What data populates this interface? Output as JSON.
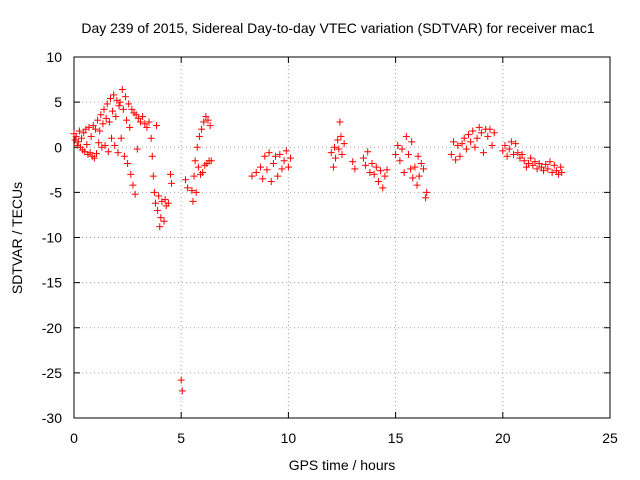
{
  "chart_data": {
    "type": "scatter",
    "title": "Day 239 of 2015, Sidereal Day-to-day VTEC variation (SDTVAR) for receiver mac1",
    "xlabel": "GPS time / hours",
    "ylabel": "SDTVAR / TECUs",
    "xlim": [
      0,
      25
    ],
    "ylim": [
      -30,
      10
    ],
    "xticks": [
      0,
      5,
      10,
      15,
      20,
      25
    ],
    "yticks": [
      10,
      5,
      0,
      -5,
      -10,
      -15,
      -20,
      -25,
      -30
    ],
    "grid": true,
    "marker": "plus",
    "color": "#ff0000",
    "series": [
      {
        "name": "SDTVAR",
        "points": [
          [
            0.0,
            1.5
          ],
          [
            0.05,
            0.8
          ],
          [
            0.1,
            1.2
          ],
          [
            0.15,
            0.2
          ],
          [
            0.2,
            0.6
          ],
          [
            0.25,
            1.8
          ],
          [
            0.3,
            0.0
          ],
          [
            0.35,
            1.0
          ],
          [
            0.4,
            -0.3
          ],
          [
            0.45,
            1.6
          ],
          [
            0.5,
            -0.5
          ],
          [
            0.55,
            2.0
          ],
          [
            0.6,
            0.3
          ],
          [
            0.65,
            -0.8
          ],
          [
            0.7,
            2.2
          ],
          [
            0.75,
            -0.6
          ],
          [
            0.8,
            1.2
          ],
          [
            0.85,
            -1.0
          ],
          [
            0.9,
            2.4
          ],
          [
            0.95,
            -1.2
          ],
          [
            1.0,
            2.0
          ],
          [
            1.05,
            -0.7
          ],
          [
            1.1,
            3.0
          ],
          [
            1.15,
            0.5
          ],
          [
            1.2,
            1.8
          ],
          [
            1.25,
            3.6
          ],
          [
            1.3,
            0.0
          ],
          [
            1.35,
            2.6
          ],
          [
            1.4,
            4.2
          ],
          [
            1.45,
            0.2
          ],
          [
            1.5,
            3.2
          ],
          [
            1.55,
            4.8
          ],
          [
            1.6,
            -0.5
          ],
          [
            1.65,
            2.8
          ],
          [
            1.7,
            5.4
          ],
          [
            1.75,
            1.0
          ],
          [
            1.8,
            4.0
          ],
          [
            1.85,
            5.8
          ],
          [
            1.9,
            0.2
          ],
          [
            1.95,
            3.4
          ],
          [
            2.0,
            5.2
          ],
          [
            2.05,
            -0.6
          ],
          [
            2.1,
            4.6
          ],
          [
            2.15,
            5.0
          ],
          [
            2.2,
            1.0
          ],
          [
            2.25,
            6.4
          ],
          [
            2.3,
            4.2
          ],
          [
            2.35,
            -1.0
          ],
          [
            2.4,
            5.6
          ],
          [
            2.45,
            3.0
          ],
          [
            2.5,
            -1.8
          ],
          [
            2.55,
            4.8
          ],
          [
            2.6,
            2.2
          ],
          [
            2.65,
            -3.0
          ],
          [
            2.7,
            4.2
          ],
          [
            2.75,
            -4.2
          ],
          [
            2.8,
            3.8
          ],
          [
            2.85,
            -5.2
          ],
          [
            2.9,
            3.6
          ],
          [
            2.95,
            -0.2
          ],
          [
            3.0,
            3.2
          ],
          [
            3.1,
            2.8
          ],
          [
            3.2,
            3.4
          ],
          [
            3.3,
            2.6
          ],
          [
            3.4,
            2.2
          ],
          [
            3.5,
            2.8
          ],
          [
            3.6,
            1.0
          ],
          [
            3.65,
            -1.0
          ],
          [
            3.7,
            -3.2
          ],
          [
            3.75,
            -5.0
          ],
          [
            3.8,
            -6.2
          ],
          [
            3.85,
            2.4
          ],
          [
            3.9,
            -7.0
          ],
          [
            3.95,
            -5.4
          ],
          [
            4.0,
            -8.8
          ],
          [
            4.05,
            -7.8
          ],
          [
            4.1,
            -6.0
          ],
          [
            4.2,
            -8.2
          ],
          [
            4.25,
            -5.8
          ],
          [
            4.3,
            -6.5
          ],
          [
            4.4,
            -6.2
          ],
          [
            4.5,
            -3.0
          ],
          [
            4.55,
            -4.0
          ],
          [
            5.0,
            -25.8
          ],
          [
            5.05,
            -27.0
          ],
          [
            5.2,
            -3.6
          ],
          [
            5.3,
            -4.5
          ],
          [
            5.5,
            -4.8
          ],
          [
            5.55,
            -6.0
          ],
          [
            5.6,
            -3.2
          ],
          [
            5.65,
            -1.5
          ],
          [
            5.7,
            -5.0
          ],
          [
            5.75,
            0.0
          ],
          [
            5.8,
            -2.2
          ],
          [
            5.85,
            1.2
          ],
          [
            5.9,
            -3.0
          ],
          [
            5.95,
            2.0
          ],
          [
            6.0,
            -2.8
          ],
          [
            6.05,
            2.8
          ],
          [
            6.1,
            -2.0
          ],
          [
            6.15,
            3.4
          ],
          [
            6.2,
            -1.8
          ],
          [
            6.25,
            3.0
          ],
          [
            6.3,
            -1.5
          ],
          [
            6.35,
            2.4
          ],
          [
            6.4,
            -1.5
          ],
          [
            8.3,
            -3.2
          ],
          [
            8.5,
            -2.8
          ],
          [
            8.7,
            -2.2
          ],
          [
            8.8,
            -3.5
          ],
          [
            8.9,
            -1.0
          ],
          [
            9.0,
            -2.5
          ],
          [
            9.1,
            -0.6
          ],
          [
            9.2,
            -3.8
          ],
          [
            9.3,
            -1.8
          ],
          [
            9.4,
            -1.0
          ],
          [
            9.5,
            -3.2
          ],
          [
            9.6,
            -0.8
          ],
          [
            9.7,
            -2.4
          ],
          [
            9.8,
            -1.5
          ],
          [
            9.9,
            -0.4
          ],
          [
            10.0,
            -2.2
          ],
          [
            10.1,
            -1.2
          ],
          [
            12.0,
            -0.6
          ],
          [
            12.1,
            -2.2
          ],
          [
            12.15,
            0.0
          ],
          [
            12.2,
            -1.2
          ],
          [
            12.3,
            0.8
          ],
          [
            12.35,
            -0.2
          ],
          [
            12.4,
            2.8
          ],
          [
            12.45,
            1.2
          ],
          [
            12.5,
            -0.8
          ],
          [
            12.6,
            0.4
          ],
          [
            13.0,
            -1.6
          ],
          [
            13.1,
            -2.4
          ],
          [
            13.5,
            -1.2
          ],
          [
            13.6,
            -2.0
          ],
          [
            13.7,
            -0.5
          ],
          [
            13.8,
            -2.8
          ],
          [
            13.9,
            -1.8
          ],
          [
            14.0,
            -3.0
          ],
          [
            14.1,
            -2.2
          ],
          [
            14.2,
            -3.8
          ],
          [
            14.3,
            -2.6
          ],
          [
            14.4,
            -4.5
          ],
          [
            14.5,
            -3.2
          ],
          [
            14.6,
            -2.5
          ],
          [
            15.0,
            -0.8
          ],
          [
            15.1,
            0.2
          ],
          [
            15.2,
            -1.5
          ],
          [
            15.3,
            -0.2
          ],
          [
            15.4,
            -2.8
          ],
          [
            15.5,
            1.2
          ],
          [
            15.6,
            -0.8
          ],
          [
            15.7,
            -2.4
          ],
          [
            15.75,
            0.6
          ],
          [
            15.8,
            -3.4
          ],
          [
            15.9,
            -2.2
          ],
          [
            16.0,
            -4.2
          ],
          [
            16.05,
            -1.0
          ],
          [
            16.1,
            -3.2
          ],
          [
            16.2,
            -1.8
          ],
          [
            16.3,
            -2.4
          ],
          [
            16.4,
            -5.6
          ],
          [
            16.45,
            -5.0
          ],
          [
            17.6,
            -0.8
          ],
          [
            17.7,
            0.6
          ],
          [
            17.8,
            -1.4
          ],
          [
            17.9,
            0.2
          ],
          [
            18.0,
            -1.0
          ],
          [
            18.1,
            0.4
          ],
          [
            18.2,
            1.0
          ],
          [
            18.3,
            -0.2
          ],
          [
            18.4,
            1.4
          ],
          [
            18.5,
            0.6
          ],
          [
            18.6,
            1.8
          ],
          [
            18.7,
            0.0
          ],
          [
            18.8,
            1.0
          ],
          [
            18.9,
            2.2
          ],
          [
            19.0,
            1.6
          ],
          [
            19.1,
            -0.6
          ],
          [
            19.2,
            2.0
          ],
          [
            19.3,
            1.2
          ],
          [
            19.4,
            2.0
          ],
          [
            19.5,
            0.2
          ],
          [
            19.6,
            1.6
          ],
          [
            20.0,
            -0.4
          ],
          [
            20.1,
            0.2
          ],
          [
            20.2,
            -1.0
          ],
          [
            20.3,
            -0.2
          ],
          [
            20.4,
            0.6
          ],
          [
            20.5,
            -0.8
          ],
          [
            20.6,
            0.4
          ],
          [
            20.7,
            -0.6
          ],
          [
            20.8,
            -1.2
          ],
          [
            20.9,
            -0.8
          ],
          [
            21.0,
            -1.5
          ],
          [
            21.1,
            -2.2
          ],
          [
            21.2,
            -1.8
          ],
          [
            21.3,
            -1.2
          ],
          [
            21.4,
            -2.0
          ],
          [
            21.5,
            -1.6
          ],
          [
            21.6,
            -2.4
          ],
          [
            21.7,
            -1.8
          ],
          [
            21.8,
            -2.2
          ],
          [
            21.9,
            -2.6
          ],
          [
            22.0,
            -1.9
          ],
          [
            22.1,
            -2.4
          ],
          [
            22.2,
            -1.6
          ],
          [
            22.3,
            -2.8
          ],
          [
            22.4,
            -2.0
          ],
          [
            22.5,
            -2.6
          ],
          [
            22.6,
            -3.0
          ],
          [
            22.7,
            -2.2
          ],
          [
            22.75,
            -2.8
          ]
        ]
      }
    ]
  }
}
